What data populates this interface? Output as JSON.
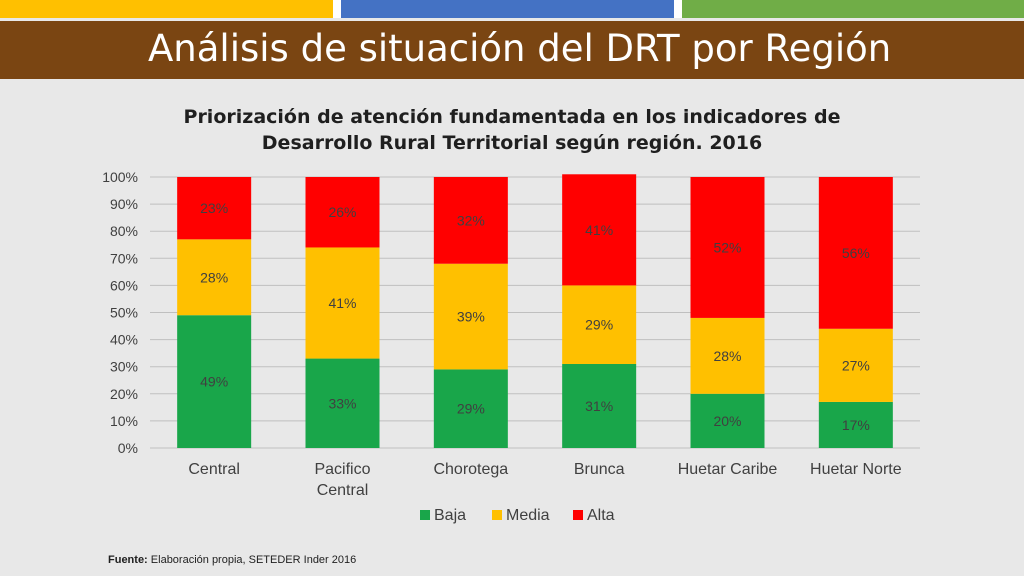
{
  "header": {
    "stripe_colors": [
      "#ffc000",
      "#4472c4",
      "#70ad47"
    ],
    "bar_color": "#7a4512",
    "title": "Análisis de situación del DRT por Región"
  },
  "chart_data": {
    "type": "bar",
    "stacked": true,
    "normalized_percent": true,
    "title_line1": "Priorización de atención fundamentada en los  indicadores de",
    "title_line2": "Desarrollo Rural Territorial según región. 2016",
    "categories": [
      [
        "Central"
      ],
      [
        "Pacifico",
        "Central"
      ],
      [
        "Chorotega"
      ],
      [
        "Brunca"
      ],
      [
        "Huetar Caribe"
      ],
      [
        "Huetar Norte"
      ]
    ],
    "series": [
      {
        "name": "Baja",
        "color": "#19a64a",
        "values": [
          49,
          33,
          29,
          31,
          20,
          17
        ]
      },
      {
        "name": "Media",
        "color": "#ffc000",
        "values": [
          28,
          41,
          39,
          29,
          28,
          27
        ]
      },
      {
        "name": "Alta",
        "color": "#ff0000",
        "values": [
          23,
          26,
          32,
          41,
          52,
          56
        ]
      }
    ],
    "ylim": [
      0,
      100
    ],
    "yticks": [
      "0%",
      "10%",
      "20%",
      "30%",
      "40%",
      "50%",
      "60%",
      "70%",
      "80%",
      "90%",
      "100%"
    ],
    "legend_position": "bottom",
    "grid": true
  },
  "footer": {
    "label": "Fuente:",
    "text": " Elaboración propia, SETEDER Inder 2016"
  }
}
